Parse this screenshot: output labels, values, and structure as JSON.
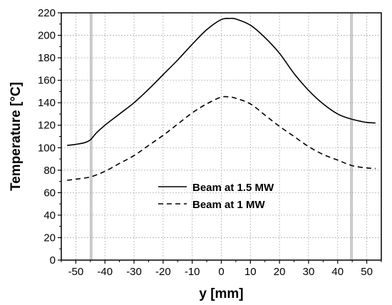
{
  "chart_data": {
    "type": "line",
    "xlabel": "y [mm]",
    "ylabel": "Temperature [°C]",
    "xlim": [
      -55,
      55
    ],
    "ylim": [
      0,
      220
    ],
    "x_ticks": [
      -50,
      -40,
      -30,
      -20,
      -10,
      0,
      10,
      20,
      30,
      40,
      50
    ],
    "y_ticks": [
      0,
      20,
      40,
      60,
      80,
      100,
      120,
      140,
      160,
      180,
      200,
      220
    ],
    "grid": true,
    "legend_position": "center",
    "vertical_markers": [
      -45,
      -44.5,
      44.5,
      45
    ],
    "series": [
      {
        "name": "Beam at 1.5 MW",
        "style": "solid",
        "color": "#000000",
        "x": [
          -53,
          -50,
          -47,
          -45,
          -43,
          -40,
          -35,
          -30,
          -25,
          -20,
          -15,
          -10,
          -5,
          0,
          3,
          5,
          10,
          15,
          20,
          25,
          30,
          35,
          40,
          44,
          47,
          50,
          53
        ],
        "y": [
          102,
          103,
          104.5,
          107,
          113,
          120,
          130,
          140,
          152,
          165,
          178,
          192,
          205,
          214,
          215,
          214.5,
          209,
          198,
          184,
          166,
          151,
          139,
          130,
          126,
          124,
          122.5,
          122
        ]
      },
      {
        "name": "Beam at 1 MW",
        "style": "dashed",
        "color": "#000000",
        "x": [
          -53,
          -50,
          -45,
          -40,
          -35,
          -30,
          -25,
          -20,
          -15,
          -10,
          -5,
          0,
          3,
          5,
          10,
          15,
          20,
          25,
          30,
          35,
          40,
          45,
          50,
          53
        ],
        "y": [
          71,
          72,
          74,
          79,
          86,
          93,
          102,
          111,
          121,
          131,
          139,
          145,
          145,
          144,
          139,
          129,
          119,
          110,
          101,
          94,
          89,
          84,
          82,
          81.5
        ]
      }
    ]
  }
}
